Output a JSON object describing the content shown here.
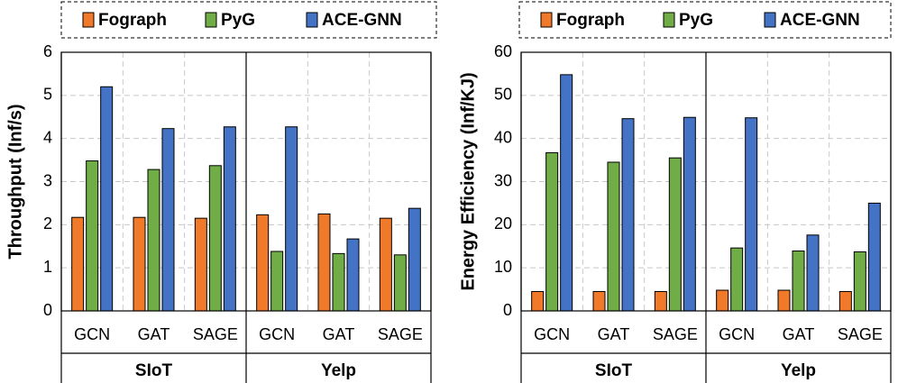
{
  "chart_data": [
    {
      "type": "bar",
      "y_label": "Throughput (Inf/s)",
      "categories": [
        "GCN",
        "GAT",
        "SAGE",
        "GCN",
        "GAT",
        "SAGE"
      ],
      "groups": [
        "SIoT",
        "Yelp"
      ],
      "series": [
        {
          "name": "Fograph",
          "color": "#f07a2a",
          "values": [
            2.17,
            2.17,
            2.15,
            2.23,
            2.25,
            2.15
          ]
        },
        {
          "name": "PyG",
          "color": "#70ad47",
          "values": [
            3.48,
            3.28,
            3.37,
            1.38,
            1.33,
            1.3
          ]
        },
        {
          "name": "ACE-GNN",
          "color": "#4472c4",
          "values": [
            5.2,
            4.23,
            4.27,
            4.27,
            1.67,
            2.38
          ]
        }
      ],
      "ylim": [
        0,
        6
      ],
      "yticks": [
        0,
        1,
        2,
        3,
        4,
        5,
        6
      ],
      "grid": true
    },
    {
      "type": "bar",
      "y_label": "Energy Efficiency (Inf/KJ)",
      "categories": [
        "GCN",
        "GAT",
        "SAGE",
        "GCN",
        "GAT",
        "SAGE"
      ],
      "groups": [
        "SIoT",
        "Yelp"
      ],
      "series": [
        {
          "name": "Fograph",
          "color": "#f07a2a",
          "values": [
            4.5,
            4.5,
            4.5,
            4.8,
            4.8,
            4.5
          ]
        },
        {
          "name": "PyG",
          "color": "#70ad47",
          "values": [
            36.7,
            34.5,
            35.5,
            14.6,
            13.9,
            13.7
          ]
        },
        {
          "name": "ACE-GNN",
          "color": "#4472c4",
          "values": [
            54.8,
            44.6,
            44.9,
            44.8,
            17.6,
            25.0
          ]
        }
      ],
      "ylim": [
        0,
        60
      ],
      "yticks": [
        0,
        10,
        20,
        30,
        40,
        50,
        60
      ],
      "grid": true
    }
  ]
}
